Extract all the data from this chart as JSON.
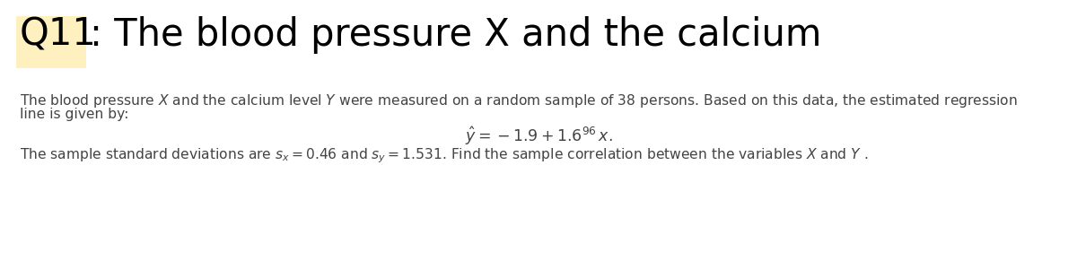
{
  "title_prefix": "Q11",
  "title_rest": ": The blood pressure X and the calcium",
  "highlight_color": "#FFF0C0",
  "body_line1": "The blood pressure $X$ and the calcium level $Y$ were measured on a random sample of 38 persons. Based on this data, the estimated regression",
  "body_line2": "line is given by:",
  "equation": "$\\hat{y} = -1.9 + 1.6^{96}\\, x.$",
  "body_line3": "The sample standard deviations are $s_x = 0.46$ and $s_y = 1.531$. Find the sample correlation between the variables $X$ and $Y$ .",
  "bg_color": "#ffffff",
  "title_fontsize": 30,
  "body_fontsize": 11.2,
  "eq_fontsize": 12.5,
  "text_color": "#444444"
}
